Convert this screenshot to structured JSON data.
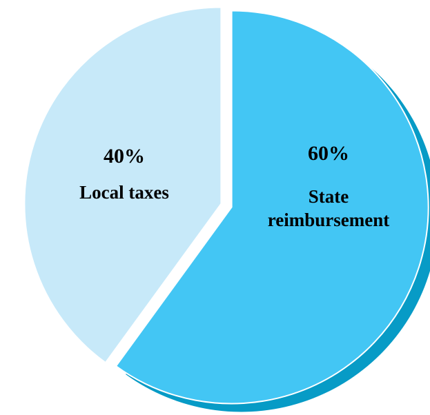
{
  "chart_data": {
    "type": "pie",
    "title": "",
    "slices": [
      {
        "label_lines": [
          "State",
          "reimbursement"
        ],
        "value": 60,
        "value_label": "60%",
        "color": "#43c6f4",
        "shadow_color": "#079bc6"
      },
      {
        "label_lines": [
          "Local taxes"
        ],
        "value": 40,
        "value_label": "40%",
        "color": "#c7e9f9"
      }
    ],
    "start_angle_deg": 0,
    "direction": "clockwise",
    "legend": "none"
  }
}
